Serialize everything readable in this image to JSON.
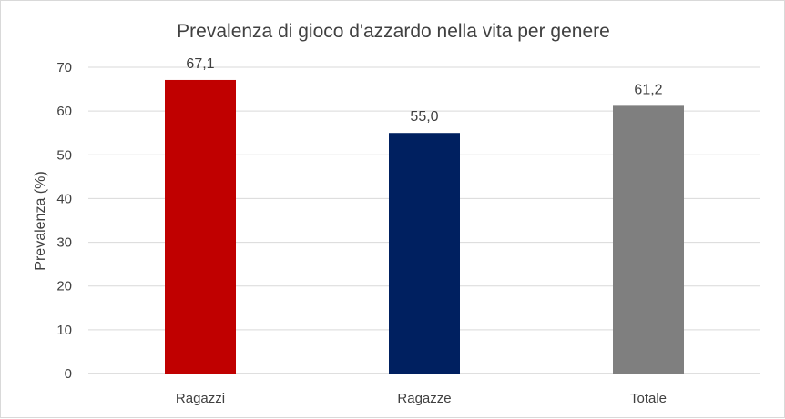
{
  "chart_data": {
    "type": "bar",
    "title": "Prevalenza di gioco d'azzardo nella vita per genere",
    "xlabel": "",
    "ylabel": "Prevalenza (%)",
    "categories": [
      "Ragazzi",
      "Ragazze",
      "Totale"
    ],
    "values": [
      67.1,
      55.0,
      61.2
    ],
    "data_labels": [
      "67,1",
      "55,0",
      "61,2"
    ],
    "colors": [
      "#c00000",
      "#002060",
      "#7f7f7f"
    ],
    "ylim": [
      0,
      70
    ],
    "yticks": [
      0,
      10,
      20,
      30,
      40,
      50,
      60,
      70
    ],
    "grid": true,
    "legend": "none"
  }
}
